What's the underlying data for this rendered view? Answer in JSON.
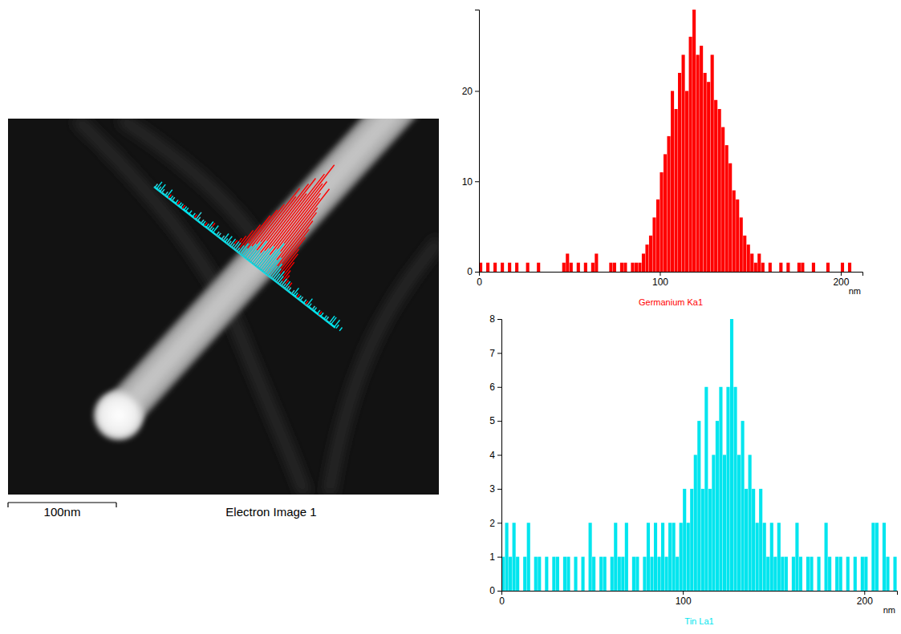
{
  "chart_data": [
    {
      "type": "histogram",
      "xlabel": "Germanium Ka1",
      "x_unit": "nm",
      "color": "#ff0000",
      "bins": [
        0,
        2,
        4,
        6,
        8,
        10,
        12,
        14,
        16,
        18,
        20,
        22,
        24,
        26,
        28,
        30,
        32,
        34,
        36,
        38,
        40,
        42,
        44,
        46,
        48,
        50,
        52,
        54,
        56,
        58,
        60,
        62,
        64,
        66,
        68,
        70,
        72,
        74,
        76,
        78,
        80,
        82,
        84,
        86,
        88,
        90,
        92,
        94,
        96,
        98,
        100,
        102,
        104,
        106,
        108,
        110,
        112,
        114,
        116,
        118,
        120,
        122,
        124,
        126,
        128,
        130,
        132,
        134,
        136,
        138,
        140,
        142,
        144,
        146,
        148,
        150,
        152,
        154,
        156,
        158,
        160,
        162,
        164,
        166,
        168,
        170,
        172,
        174,
        176,
        178,
        180,
        182,
        184,
        186,
        188,
        190,
        192,
        194,
        196,
        198,
        200,
        202,
        204,
        206,
        208,
        210,
        212
      ],
      "values": [
        1,
        0,
        1,
        0,
        1,
        0,
        1,
        0,
        1,
        0,
        1,
        0,
        0,
        1,
        0,
        0,
        1,
        0,
        0,
        0,
        0,
        0,
        0,
        1,
        2,
        1,
        0,
        1,
        0,
        1,
        0,
        1,
        2,
        0,
        0,
        0,
        1,
        1,
        0,
        1,
        1,
        0,
        1,
        1,
        1,
        2,
        3,
        4,
        6,
        8,
        11,
        13,
        15,
        20,
        18,
        22,
        24,
        20,
        26,
        29,
        24,
        25,
        22,
        21,
        24,
        19,
        18,
        16,
        14,
        12,
        9,
        8,
        6,
        4,
        3,
        2,
        1,
        2,
        1,
        0,
        1,
        0,
        0,
        1,
        0,
        1,
        0,
        0,
        1,
        1,
        0,
        0,
        1,
        0,
        0,
        0,
        1,
        0,
        0,
        0,
        1,
        0,
        1,
        0,
        0,
        0
      ],
      "xlim": [
        0,
        212
      ],
      "xticks": [
        0,
        100,
        200
      ],
      "ylim": [
        0,
        29
      ],
      "yticks": [
        0,
        10,
        20
      ]
    },
    {
      "type": "histogram",
      "xlabel": "Tin La1",
      "x_unit": "nm",
      "color": "#00e5ee",
      "bins": [
        0,
        2,
        4,
        6,
        8,
        10,
        12,
        14,
        16,
        18,
        20,
        22,
        24,
        26,
        28,
        30,
        32,
        34,
        36,
        38,
        40,
        42,
        44,
        46,
        48,
        50,
        52,
        54,
        56,
        58,
        60,
        62,
        64,
        66,
        68,
        70,
        72,
        74,
        76,
        78,
        80,
        82,
        84,
        86,
        88,
        90,
        92,
        94,
        96,
        98,
        100,
        102,
        104,
        106,
        108,
        110,
        112,
        114,
        116,
        118,
        120,
        122,
        124,
        126,
        128,
        130,
        132,
        134,
        136,
        138,
        140,
        142,
        144,
        146,
        148,
        150,
        152,
        154,
        156,
        158,
        160,
        162,
        164,
        166,
        168,
        170,
        172,
        174,
        176,
        178,
        180,
        182,
        184,
        186,
        188,
        190,
        192,
        194,
        196,
        198,
        200,
        202,
        204,
        206,
        208,
        210,
        212,
        214,
        216,
        218
      ],
      "values": [
        1,
        2,
        1,
        2,
        1,
        0,
        1,
        2,
        0,
        1,
        1,
        0,
        1,
        0,
        1,
        1,
        0,
        1,
        1,
        0,
        1,
        0,
        1,
        0,
        2,
        1,
        0,
        1,
        1,
        0,
        1,
        2,
        1,
        1,
        2,
        0,
        1,
        1,
        0,
        1,
        2,
        1,
        2,
        1,
        2,
        1,
        2,
        2,
        1,
        2,
        3,
        2,
        3,
        4,
        5,
        3,
        6,
        3,
        4,
        5,
        6,
        4,
        6,
        8,
        6,
        4,
        5,
        3,
        4,
        3,
        2,
        3,
        2,
        1,
        2,
        1,
        2,
        1,
        1,
        0,
        1,
        2,
        1,
        0,
        1,
        1,
        0,
        1,
        0,
        2,
        1,
        0,
        1,
        1,
        0,
        1,
        0,
        1,
        0,
        1,
        1,
        0,
        2,
        2,
        0,
        2,
        1,
        0,
        1
      ],
      "xlim": [
        0,
        218
      ],
      "xticks": [
        0,
        100,
        200
      ],
      "ylim": [
        0,
        8
      ],
      "yticks": [
        0,
        1,
        2,
        3,
        4,
        5,
        6,
        7,
        8
      ]
    }
  ],
  "image": {
    "title": "Electron Image 1",
    "scale_bar": {
      "value": 100,
      "label": "100nm"
    }
  }
}
